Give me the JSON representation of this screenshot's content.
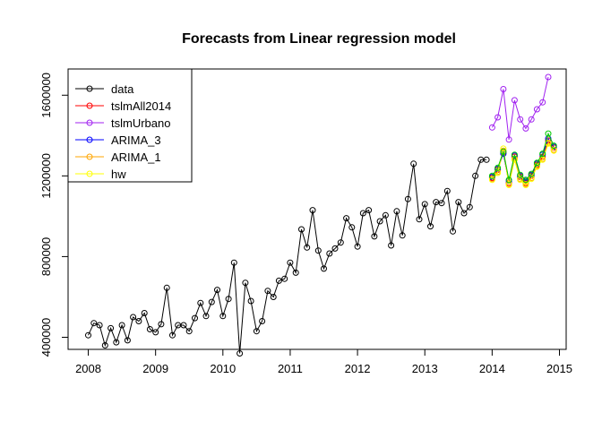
{
  "chart_data": {
    "type": "line",
    "title": "Forecasts from Linear regression model",
    "xlabel": "",
    "ylabel": "",
    "xlim": [
      2007.7,
      2015.1
    ],
    "ylim": [
      340000,
      1730000
    ],
    "x_ticks": [
      2008,
      2009,
      2010,
      2011,
      2012,
      2013,
      2014,
      2015
    ],
    "x_tick_labels": [
      "2008",
      "2009",
      "2010",
      "2011",
      "2012",
      "2013",
      "2014",
      "2015"
    ],
    "y_ticks": [
      400000,
      800000,
      1200000,
      1600000
    ],
    "y_tick_labels": [
      "400000",
      "800000",
      "1200000",
      "1600000"
    ],
    "grid": false,
    "legend_position": "top-left",
    "series": [
      {
        "name": "data",
        "color": "#000000",
        "x_start": 2008.0,
        "x_step": 0.08333333,
        "values": [
          410000,
          470000,
          460000,
          360000,
          445000,
          375000,
          460000,
          385000,
          500000,
          480000,
          520000,
          440000,
          425000,
          465000,
          645000,
          410000,
          460000,
          460000,
          430000,
          495000,
          570000,
          505000,
          575000,
          635000,
          505000,
          590000,
          770000,
          320000,
          670000,
          580000,
          430000,
          480000,
          630000,
          600000,
          680000,
          690000,
          770000,
          720000,
          935000,
          845000,
          1030000,
          830000,
          740000,
          815000,
          840000,
          870000,
          990000,
          945000,
          850000,
          1015000,
          1030000,
          900000,
          975000,
          1005000,
          855000,
          1025000,
          905000,
          1085000,
          1260000,
          985000,
          1060000,
          950000,
          1070000,
          1065000,
          1125000,
          925000,
          1070000,
          1015000,
          1045000,
          1200000,
          1280000,
          1280000
        ]
      },
      {
        "name": "tslmAll2014",
        "color": "#ff0000",
        "x_start": 2014.0,
        "x_step": 0.08333333,
        "values": [
          1190000,
          1230000,
          1315000,
          1165000,
          1295000,
          1195000,
          1165000,
          1200000,
          1255000,
          1295000,
          1375000,
          1340000
        ]
      },
      {
        "name": "tslmUrbano",
        "color": "#a020f0",
        "x_start": 2014.0,
        "x_step": 0.08333333,
        "values": [
          1440000,
          1490000,
          1630000,
          1380000,
          1575000,
          1480000,
          1435000,
          1480000,
          1530000,
          1565000,
          1690000,
          null
        ]
      },
      {
        "name": "ARIMA_3",
        "color": "#0000ff",
        "x_start": 2014.0,
        "x_step": 0.08333333,
        "values": [
          1195000,
          1235000,
          1310000,
          1175000,
          1300000,
          1200000,
          1175000,
          1205000,
          1260000,
          1305000,
          1385000,
          1345000
        ]
      },
      {
        "name": "ARIMA_1",
        "color": "#ffa500",
        "x_start": 2014.0,
        "x_step": 0.08333333,
        "values": [
          1185000,
          1220000,
          1325000,
          1160000,
          1285000,
          1185000,
          1160000,
          1190000,
          1250000,
          1285000,
          1365000,
          1330000
        ]
      },
      {
        "name": "hw",
        "color": "#ffff00",
        "x_start": 2014.0,
        "x_step": 0.08333333,
        "values": [
          1180000,
          1215000,
          1335000,
          1155000,
          1280000,
          1180000,
          1155000,
          1185000,
          1245000,
          1280000,
          1360000,
          1325000
        ]
      },
      {
        "name": "",
        "color": "#00c800",
        "x_start": 2014.0,
        "x_step": 0.08333333,
        "values": [
          1200000,
          1240000,
          1320000,
          1180000,
          1305000,
          1205000,
          1180000,
          1210000,
          1265000,
          1310000,
          1410000,
          1350000
        ]
      }
    ]
  }
}
